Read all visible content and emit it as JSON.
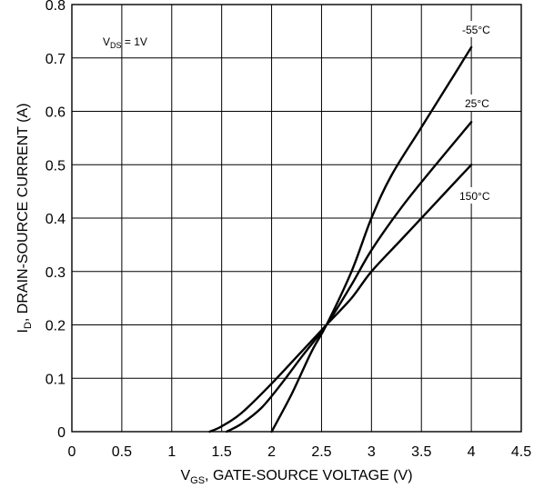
{
  "chart_data": {
    "type": "line",
    "xlabel_main": "V",
    "xlabel_sub": "GS",
    "xlabel_rest": ", GATE-SOURCE VOLTAGE (V)",
    "ylabel_main": "I",
    "ylabel_sub": "D",
    "ylabel_rest": ", DRAIN-SOURCE CURRENT (A)",
    "xlim": [
      0,
      4.5
    ],
    "ylim": [
      0,
      0.8
    ],
    "xticks": [
      0,
      0.5,
      1,
      1.5,
      2,
      2.5,
      3,
      3.5,
      4,
      4.5
    ],
    "xtick_labels": [
      "0",
      "0.5",
      "1",
      "1.5",
      "2",
      "2.5",
      "3",
      "3.5",
      "4",
      "4.5"
    ],
    "yticks": [
      0,
      0.1,
      0.2,
      0.3,
      0.4,
      0.5,
      0.6,
      0.7,
      0.8
    ],
    "ytick_labels": [
      "0",
      "0.1",
      "0.2",
      "0.3",
      "0.4",
      "0.5",
      "0.6",
      "0.7",
      "0.8"
    ],
    "grid": true,
    "annotation": {
      "main": "V",
      "sub": "DS",
      "rest": " = 1V"
    },
    "series": [
      {
        "name": "-55°C",
        "x": [
          2.0,
          2.2,
          2.4,
          2.55,
          2.8,
          3.0,
          3.2,
          3.5,
          3.8,
          4.0
        ],
        "y": [
          0.0,
          0.07,
          0.15,
          0.2,
          0.3,
          0.4,
          0.48,
          0.57,
          0.66,
          0.72
        ]
      },
      {
        "name": "25°C",
        "x": [
          1.55,
          1.7,
          1.9,
          2.1,
          2.3,
          2.55,
          2.8,
          3.0,
          3.3,
          3.6,
          4.0
        ],
        "y": [
          0.0,
          0.015,
          0.045,
          0.09,
          0.14,
          0.2,
          0.275,
          0.34,
          0.42,
          0.49,
          0.58
        ]
      },
      {
        "name": "150°C",
        "x": [
          1.38,
          1.5,
          1.7,
          2.0,
          2.3,
          2.55,
          2.8,
          3.0,
          3.3,
          3.6,
          4.0
        ],
        "y": [
          0.0,
          0.01,
          0.035,
          0.09,
          0.15,
          0.2,
          0.25,
          0.3,
          0.36,
          0.42,
          0.5
        ]
      }
    ]
  }
}
